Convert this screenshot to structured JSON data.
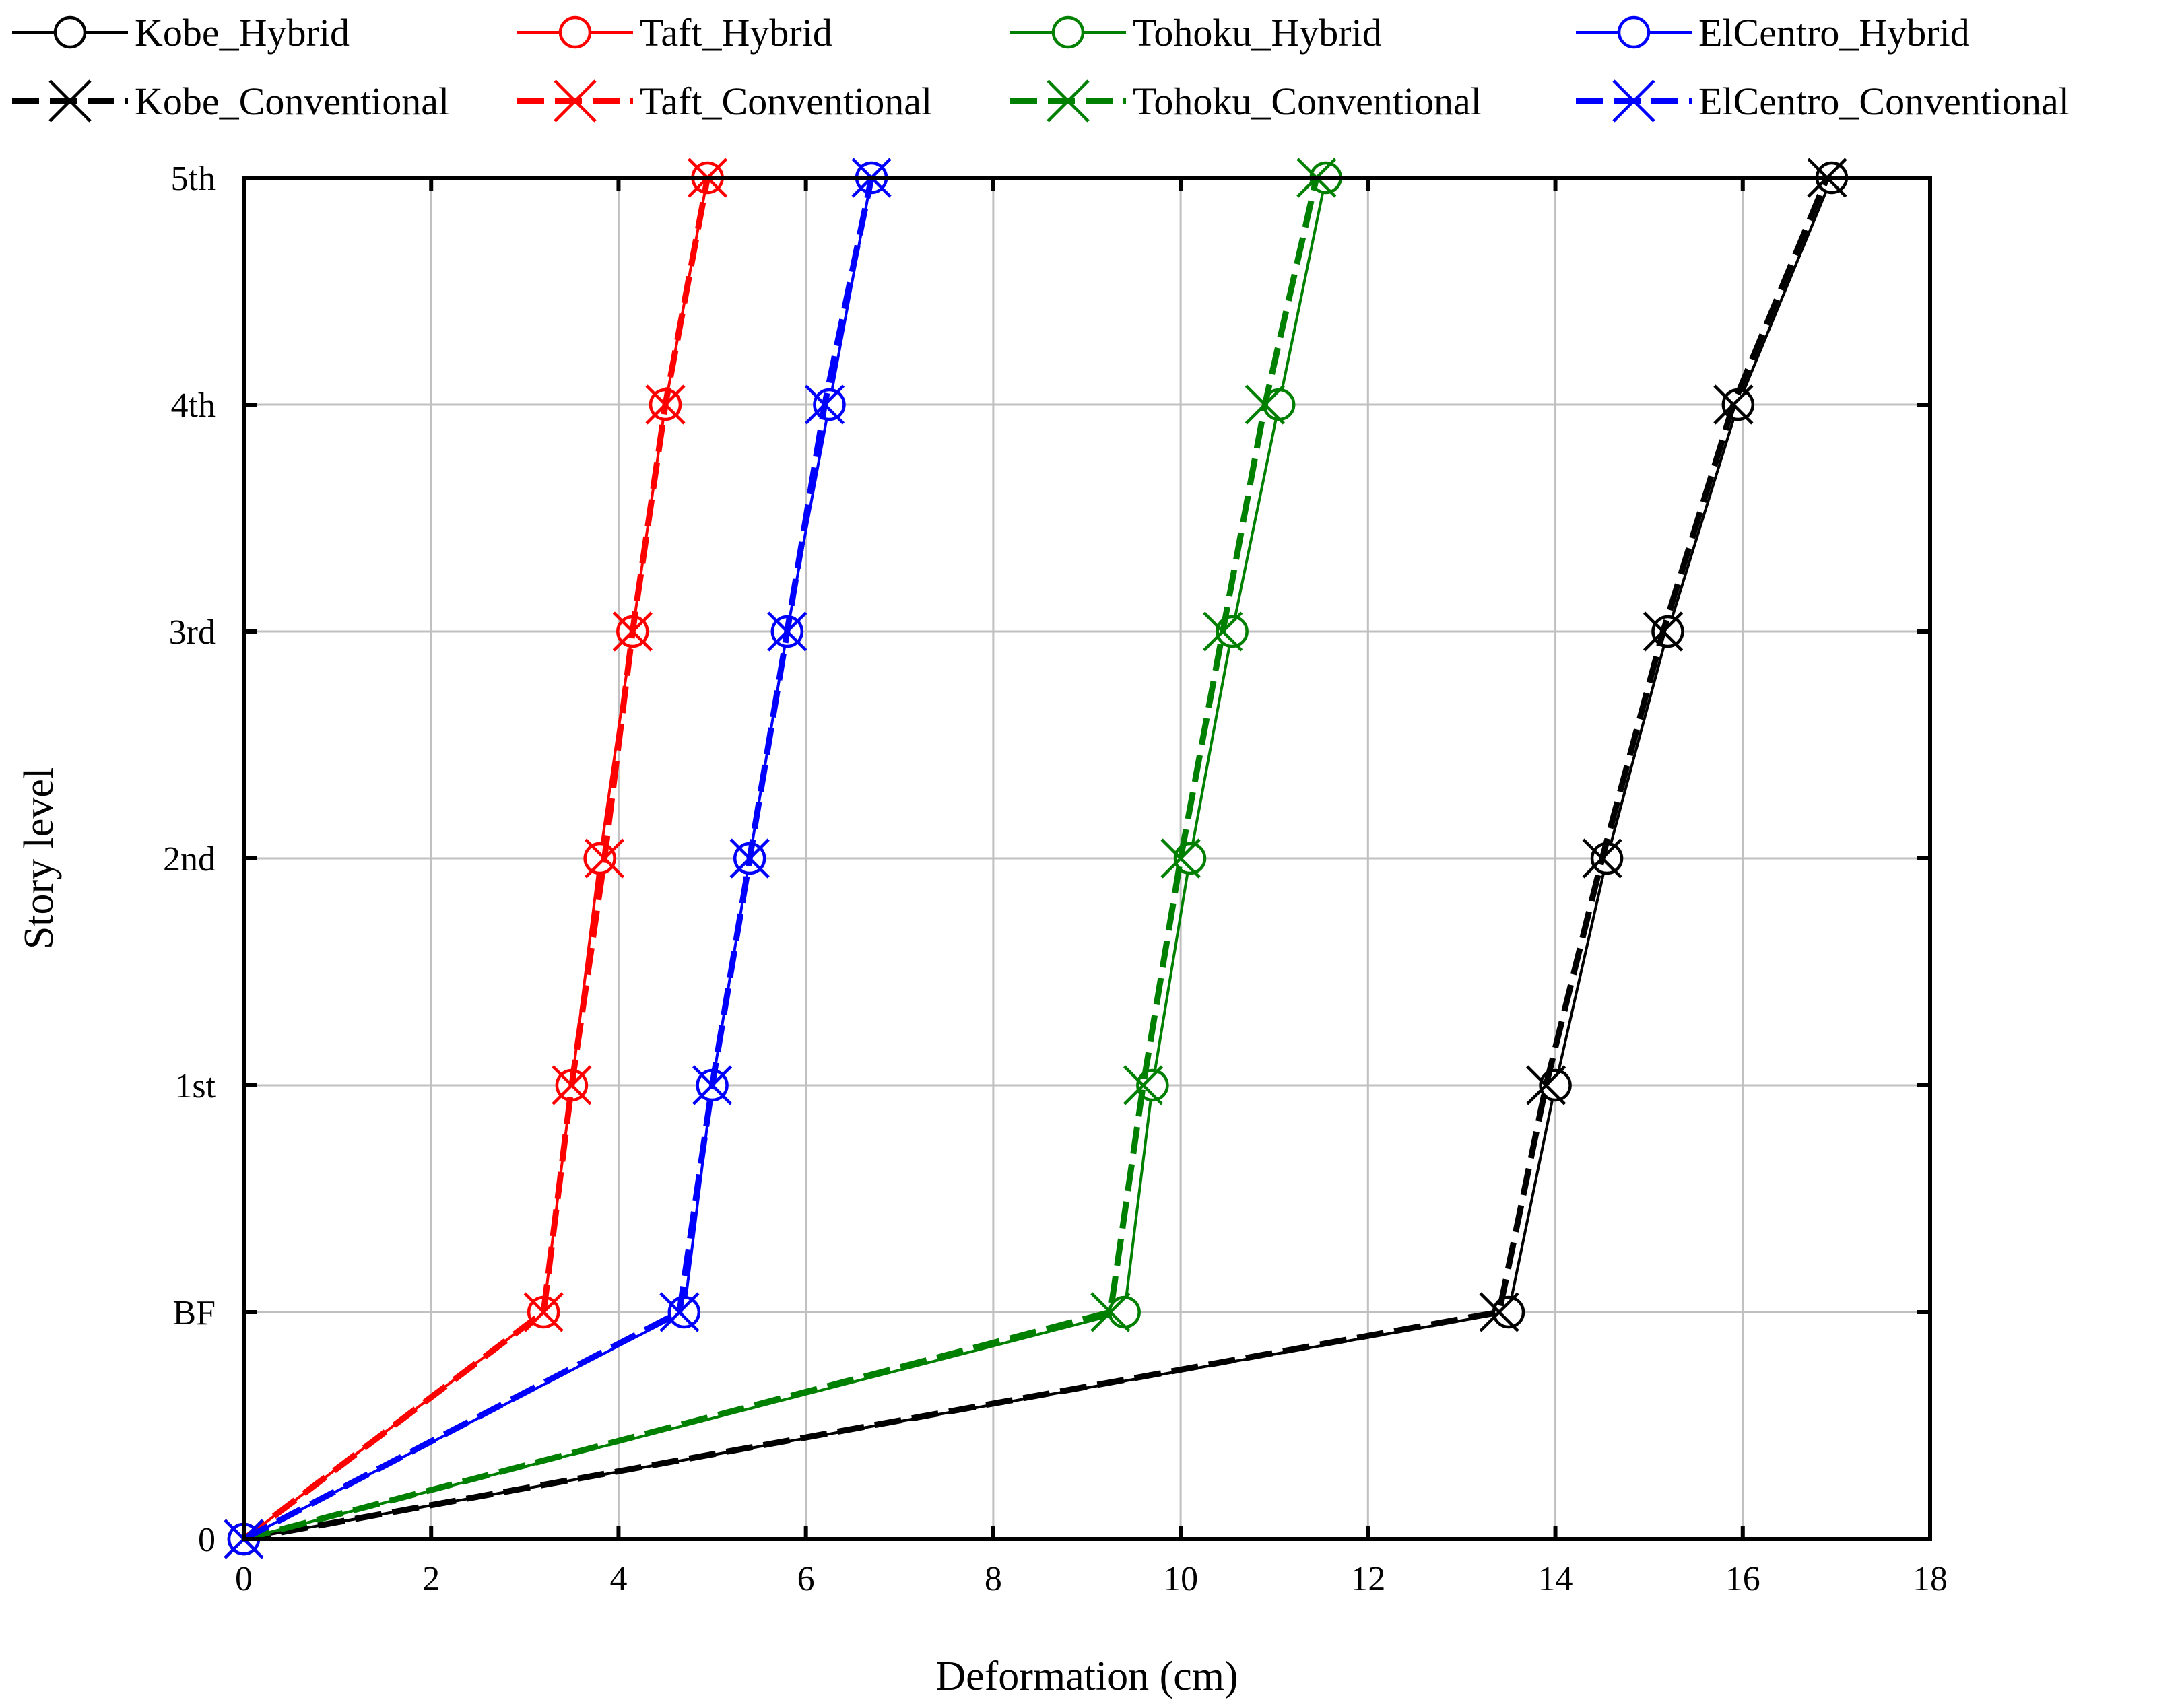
{
  "chart_data": {
    "type": "line",
    "title": "",
    "xlabel": "Deformation (cm)",
    "ylabel": "Story level",
    "xlim": [
      0,
      18
    ],
    "x_ticks": [
      0,
      2,
      4,
      6,
      8,
      10,
      12,
      14,
      16,
      18
    ],
    "categories": [
      "0",
      "BF",
      "1st",
      "2nd",
      "3rd",
      "4th",
      "5th"
    ],
    "grid": true,
    "legend_position": "top",
    "series": [
      {
        "name": "Kobe_Hybrid",
        "color": "#000000",
        "style": "solid",
        "marker": "circle",
        "values": [
          0,
          13.5,
          14.0,
          14.55,
          15.2,
          15.95,
          16.95
        ]
      },
      {
        "name": "Taft_Hybrid",
        "color": "#ff0000",
        "style": "solid",
        "marker": "circle",
        "values": [
          0,
          3.2,
          3.5,
          3.8,
          4.15,
          4.5,
          4.95
        ]
      },
      {
        "name": "Tohoku_Hybrid",
        "color": "#008000",
        "style": "solid",
        "marker": "circle",
        "values": [
          0,
          9.4,
          9.7,
          10.1,
          10.55,
          11.05,
          11.55
        ]
      },
      {
        "name": "ElCentro_Hybrid",
        "color": "#0000ff",
        "style": "solid",
        "marker": "circle",
        "values": [
          0,
          4.7,
          5.0,
          5.4,
          5.8,
          6.25,
          6.7
        ]
      },
      {
        "name": "Kobe_Conventional",
        "color": "#000000",
        "style": "dashed",
        "marker": "x",
        "values": [
          0,
          13.4,
          13.9,
          14.5,
          15.15,
          15.9,
          16.9
        ]
      },
      {
        "name": "Taft_Conventional",
        "color": "#ff0000",
        "style": "dashed",
        "marker": "x",
        "values": [
          0,
          3.2,
          3.5,
          3.85,
          4.15,
          4.5,
          4.95
        ]
      },
      {
        "name": "Tohoku_Conventional",
        "color": "#008000",
        "style": "dashed",
        "marker": "x",
        "values": [
          0,
          9.25,
          9.6,
          10.0,
          10.45,
          10.9,
          11.45
        ]
      },
      {
        "name": "ElCentro_Conventional",
        "color": "#0000ff",
        "style": "dashed",
        "marker": "x",
        "values": [
          0,
          4.65,
          5.0,
          5.4,
          5.8,
          6.2,
          6.7
        ]
      }
    ]
  }
}
